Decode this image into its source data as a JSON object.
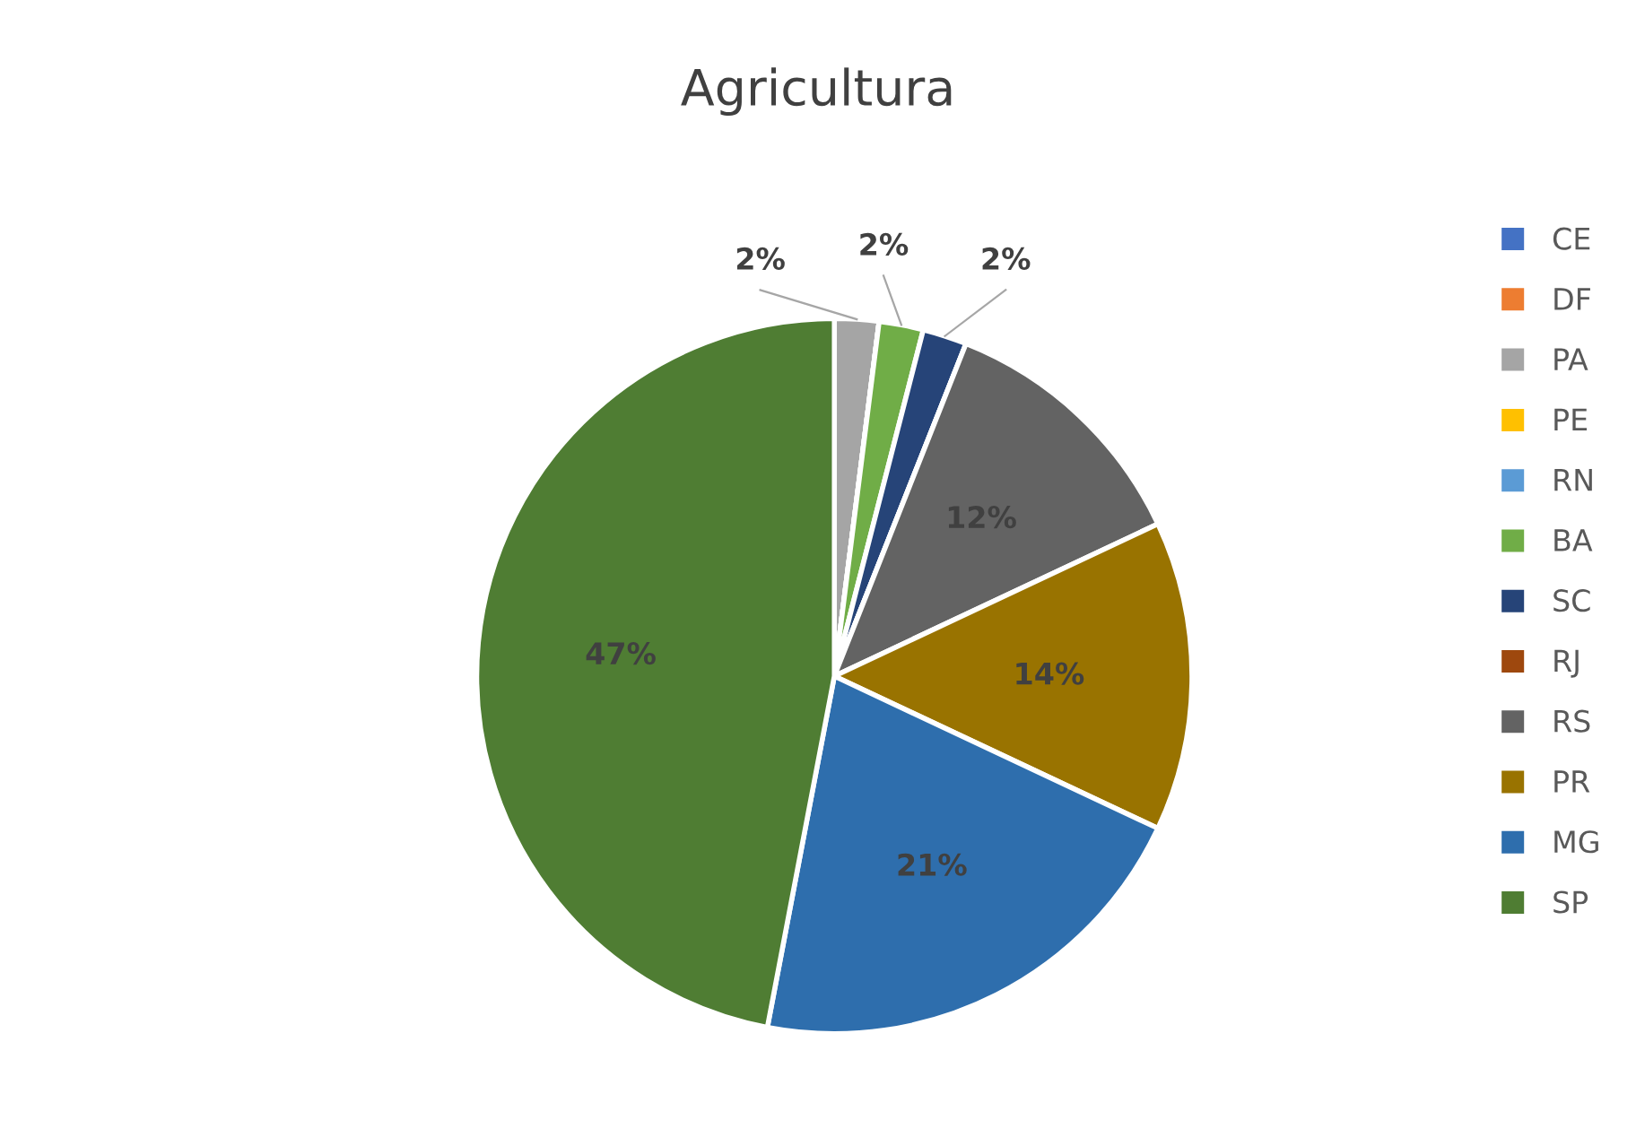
{
  "chart_data": {
    "type": "pie",
    "title": "Agricultura",
    "categories": [
      "CE",
      "DF",
      "PA",
      "PE",
      "RN",
      "BA",
      "SC",
      "RJ",
      "RS",
      "PR",
      "MG",
      "SP"
    ],
    "values": [
      0,
      0,
      2,
      0,
      0,
      2,
      2,
      0,
      12,
      14,
      21,
      47
    ],
    "value_labels": [
      null,
      null,
      "2%",
      null,
      null,
      "2%",
      "2%",
      null,
      "12%",
      "14%",
      "21%",
      "47%"
    ],
    "colors": [
      "#4472c4",
      "#ed7d31",
      "#a5a5a5",
      "#ffc000",
      "#5b9bd5",
      "#70ad47",
      "#264478",
      "#9e480e",
      "#636363",
      "#997300",
      "#2e6ead",
      "#4f7d33"
    ],
    "legend": "right"
  }
}
